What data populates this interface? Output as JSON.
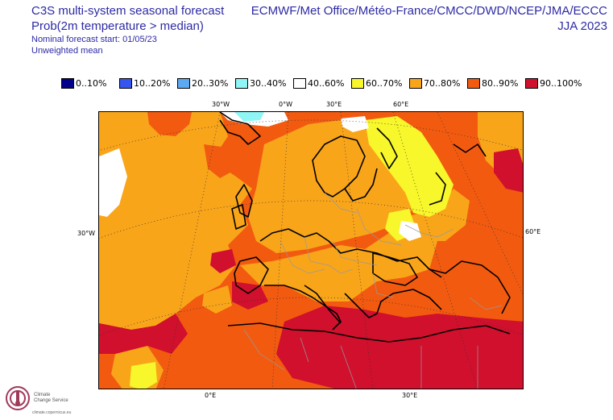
{
  "header": {
    "title": "C3S multi-system seasonal forecast",
    "subtitle": "Prob(2m temperature > median)",
    "forecast_start": "Nominal forecast start: 01/05/23",
    "weighting": "Unweighted mean",
    "systems": "ECMWF/Met Office/Météo-France/CMCC/DWD/NCEP/JMA/ECCC",
    "season": "JJA 2023"
  },
  "legend": [
    {
      "label": "0..10%",
      "color": "#00008b"
    },
    {
      "label": "10..20%",
      "color": "#3557f0"
    },
    {
      "label": "20..30%",
      "color": "#5aa9f2"
    },
    {
      "label": "30..40%",
      "color": "#8ff5f5"
    },
    {
      "label": "40..60%",
      "color": "#ffffff"
    },
    {
      "label": "60..70%",
      "color": "#f7f72b"
    },
    {
      "label": "70..80%",
      "color": "#f9a51a"
    },
    {
      "label": "80..90%",
      "color": "#f25a10"
    },
    {
      "label": "90..100%",
      "color": "#d0102d"
    }
  ],
  "coords": {
    "top_30w": "30°W",
    "top_0w": "0°W",
    "top_30e": "30°E",
    "top_60e": "60°E",
    "left_30w": "30°W",
    "right_60e": "60°E",
    "bottom_0e": "0°E",
    "bottom_30e": "30°E"
  },
  "logo": {
    "line1": "Climate",
    "line2": "Change Service",
    "url": "climate.copernicus.eu"
  }
}
